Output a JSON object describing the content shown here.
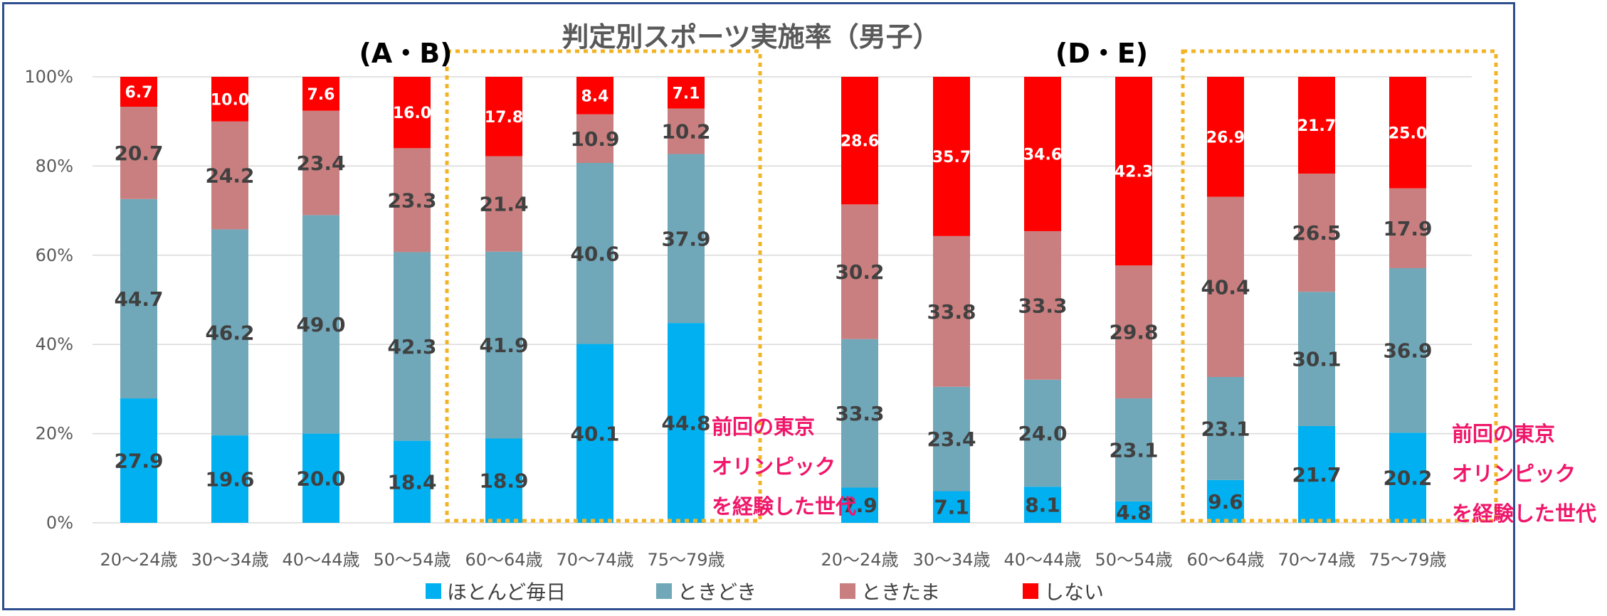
{
  "colors": {
    "everyday": "#00b0f0",
    "sometimes": "#70a7b9",
    "occasionally": "#c97f7f",
    "never": "#ff0000",
    "highlight_box": "#f2b325",
    "annotation": "#f0166a"
  },
  "chart_data": {
    "type": "bar",
    "stacked": true,
    "title": "判定別スポーツ実施率（男子）",
    "ylim": [
      0,
      100
    ],
    "y_ticks": [
      "0%",
      "20%",
      "40%",
      "60%",
      "80%",
      "100%"
    ],
    "grid": true,
    "legend_position": "bottom",
    "series_names": [
      "ほとんど毎日",
      "ときどき",
      "ときたま",
      "しない"
    ],
    "groups": [
      {
        "label": "(A・B)",
        "categories": [
          "20～24歳",
          "30～34歳",
          "40～44歳",
          "50～54歳",
          "60～64歳",
          "70～74歳",
          "75～79歳"
        ],
        "series": [
          {
            "name": "ほとんど毎日",
            "values": [
              27.9,
              19.6,
              20.0,
              18.4,
              18.9,
              40.1,
              44.8
            ]
          },
          {
            "name": "ときどき",
            "values": [
              44.7,
              46.2,
              49.0,
              42.3,
              41.9,
              40.6,
              37.9
            ]
          },
          {
            "name": "ときたま",
            "values": [
              20.7,
              24.2,
              23.4,
              23.3,
              21.4,
              10.9,
              10.2
            ]
          },
          {
            "name": "しない",
            "values": [
              6.7,
              10.0,
              7.6,
              16.0,
              17.8,
              8.4,
              7.1
            ]
          }
        ],
        "highlight": [
          4,
          6
        ]
      },
      {
        "label": "(D・E)",
        "categories": [
          "20～24歳",
          "30～34歳",
          "40～44歳",
          "50～54歳",
          "60～64歳",
          "70～74歳",
          "75～79歳"
        ],
        "series": [
          {
            "name": "ほとんど毎日",
            "values": [
              7.9,
              7.1,
              8.1,
              4.8,
              9.6,
              21.7,
              20.2
            ]
          },
          {
            "name": "ときどき",
            "values": [
              33.3,
              23.4,
              24.0,
              23.1,
              23.1,
              30.1,
              36.9
            ]
          },
          {
            "name": "ときたま",
            "values": [
              30.2,
              33.8,
              33.3,
              29.8,
              40.4,
              26.5,
              17.9
            ]
          },
          {
            "name": "しない",
            "values": [
              28.6,
              35.7,
              34.6,
              42.3,
              26.9,
              21.7,
              25.0
            ]
          }
        ],
        "highlight": [
          4,
          6
        ]
      }
    ],
    "annotations": [
      {
        "group": 0,
        "lines": [
          "前回の東京",
          "オリンピック",
          "を経験した世代"
        ]
      },
      {
        "group": 1,
        "lines": [
          "前回の東京",
          "オリンピック",
          "を経験した世代"
        ]
      }
    ]
  }
}
